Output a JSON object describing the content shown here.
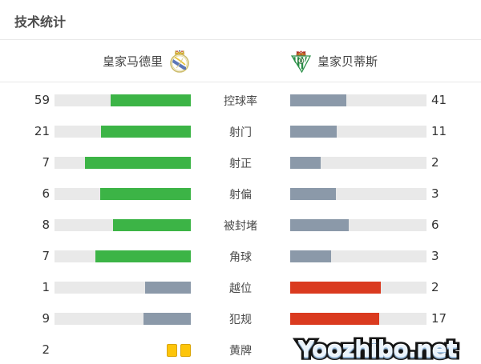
{
  "title": "技术统计",
  "teams": {
    "home": {
      "name": "皇家马德里",
      "crest": "real-madrid-crest"
    },
    "away": {
      "name": "皇家贝蒂斯",
      "crest": "real-betis-crest"
    }
  },
  "watermark": "Yoozhibo.net",
  "colors": {
    "green": "#3cb446",
    "slate": "#8b99a9",
    "red": "#da3a1f",
    "track": "#e9e9e9",
    "card_fill": "#fdc50a",
    "card_border": "#d9a400",
    "text": "#333333"
  },
  "chart_data": {
    "type": "bar",
    "orientation": "horizontal-paired",
    "title": "技术统计",
    "legend_position": "top (team names with crests)",
    "grid": false,
    "categories": [
      "控球率",
      "射门",
      "射正",
      "射偏",
      "被封堵",
      "角球",
      "越位",
      "犯规",
      "黄牌"
    ],
    "series": [
      {
        "name": "皇家马德里",
        "values": [
          59,
          21,
          7,
          6,
          8,
          7,
          1,
          9,
          2
        ]
      },
      {
        "name": "皇家贝蒂斯",
        "values": [
          41,
          11,
          2,
          3,
          6,
          3,
          2,
          17,
          null
        ]
      }
    ],
    "row_styles": {
      "home": [
        "green",
        "green",
        "green",
        "green",
        "green",
        "green",
        "slate",
        "slate",
        "cards"
      ],
      "away": [
        "slate",
        "slate",
        "slate",
        "slate",
        "slate",
        "slate",
        "red",
        "red",
        "none"
      ]
    }
  }
}
